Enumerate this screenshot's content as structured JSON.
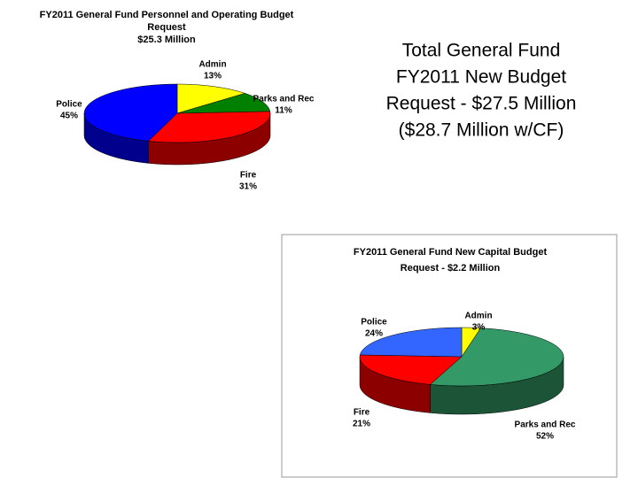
{
  "heading": [
    "Total General Fund",
    "FY2011 New Budget",
    "Request  - $27.5 Million",
    "($28.7 Million w/CF)"
  ],
  "chart_data": [
    {
      "type": "pie3d",
      "title": [
        "FY2011 General Fund Personnel and Operating Budget",
        "Request",
        "$25.3 Million"
      ],
      "categories": [
        "Admin",
        "Parks and Rec",
        "Fire",
        "Police"
      ],
      "values": [
        13,
        11,
        31,
        45
      ],
      "value_labels": [
        "13%",
        "11%",
        "31%",
        "45%"
      ],
      "colors": [
        "#ffff00",
        "#008000",
        "#ff0000",
        "#0000ff"
      ]
    },
    {
      "type": "pie3d",
      "title": [
        "FY2011 General Fund New Capital Budget",
        "Request - $2.2 Million"
      ],
      "categories": [
        "Admin",
        "Parks and Rec",
        "Fire",
        "Police"
      ],
      "values": [
        3,
        52,
        21,
        24
      ],
      "value_labels": [
        "3%",
        "52%",
        "21%",
        "24%"
      ],
      "colors": [
        "#ffff00",
        "#339966",
        "#ff0000",
        "#3366ff"
      ]
    }
  ]
}
